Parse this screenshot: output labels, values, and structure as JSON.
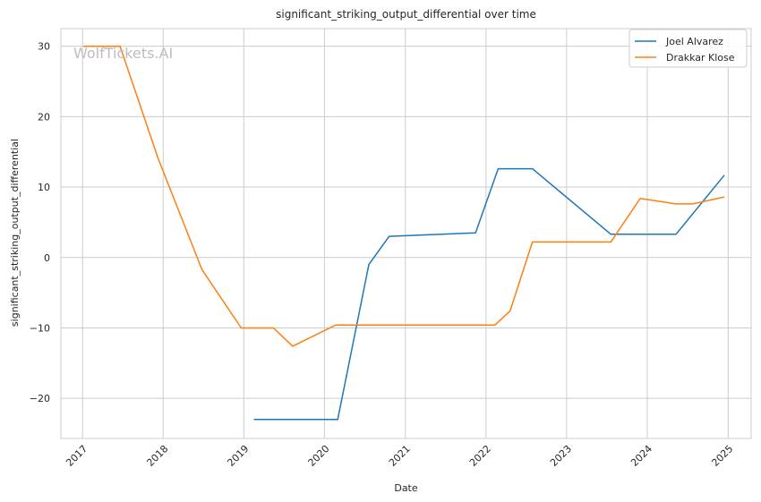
{
  "chart_data": {
    "type": "line",
    "title": "significant_striking_output_differential over time",
    "xlabel": "Date",
    "ylabel": "significant_striking_output_differential",
    "watermark": "WolfTickets.AI",
    "grid": true,
    "legend_position": "top-right",
    "x_ticks": [
      "2017",
      "2018",
      "2019",
      "2020",
      "2021",
      "2022",
      "2023",
      "2024",
      "2025"
    ],
    "y_ticks": [
      30,
      20,
      10,
      0,
      -10,
      -20
    ],
    "xlim": [
      "2016-09-25",
      "2025-04-15"
    ],
    "ylim": [
      -25.7,
      32.5
    ],
    "series": [
      {
        "name": "Joel Alvarez",
        "color": "#1f77b4",
        "points": [
          [
            "2019-02-15",
            -23.0
          ],
          [
            "2020-03-01",
            -23.0
          ],
          [
            "2020-07-20",
            -1.0
          ],
          [
            "2020-10-20",
            3.0
          ],
          [
            "2021-11-15",
            3.5
          ],
          [
            "2022-02-25",
            12.6
          ],
          [
            "2022-07-30",
            12.6
          ],
          [
            "2023-07-20",
            3.3
          ],
          [
            "2024-05-10",
            3.3
          ],
          [
            "2024-12-15",
            11.7
          ]
        ]
      },
      {
        "name": "Drakkar Klose",
        "color": "#ff7f0e",
        "points": [
          [
            "2017-01-05",
            30.0
          ],
          [
            "2017-06-20",
            30.0
          ],
          [
            "2017-12-10",
            14.0
          ],
          [
            "2018-06-25",
            -1.7
          ],
          [
            "2018-12-20",
            -10.0
          ],
          [
            "2019-05-15",
            -10.0
          ],
          [
            "2019-08-10",
            -12.6
          ],
          [
            "2020-02-20",
            -9.6
          ],
          [
            "2022-02-10",
            -9.6
          ],
          [
            "2022-04-20",
            -7.6
          ],
          [
            "2022-07-30",
            2.2
          ],
          [
            "2023-07-20",
            2.2
          ],
          [
            "2023-11-30",
            8.4
          ],
          [
            "2024-05-10",
            7.6
          ],
          [
            "2024-07-25",
            7.6
          ],
          [
            "2024-12-15",
            8.6
          ]
        ]
      }
    ]
  }
}
